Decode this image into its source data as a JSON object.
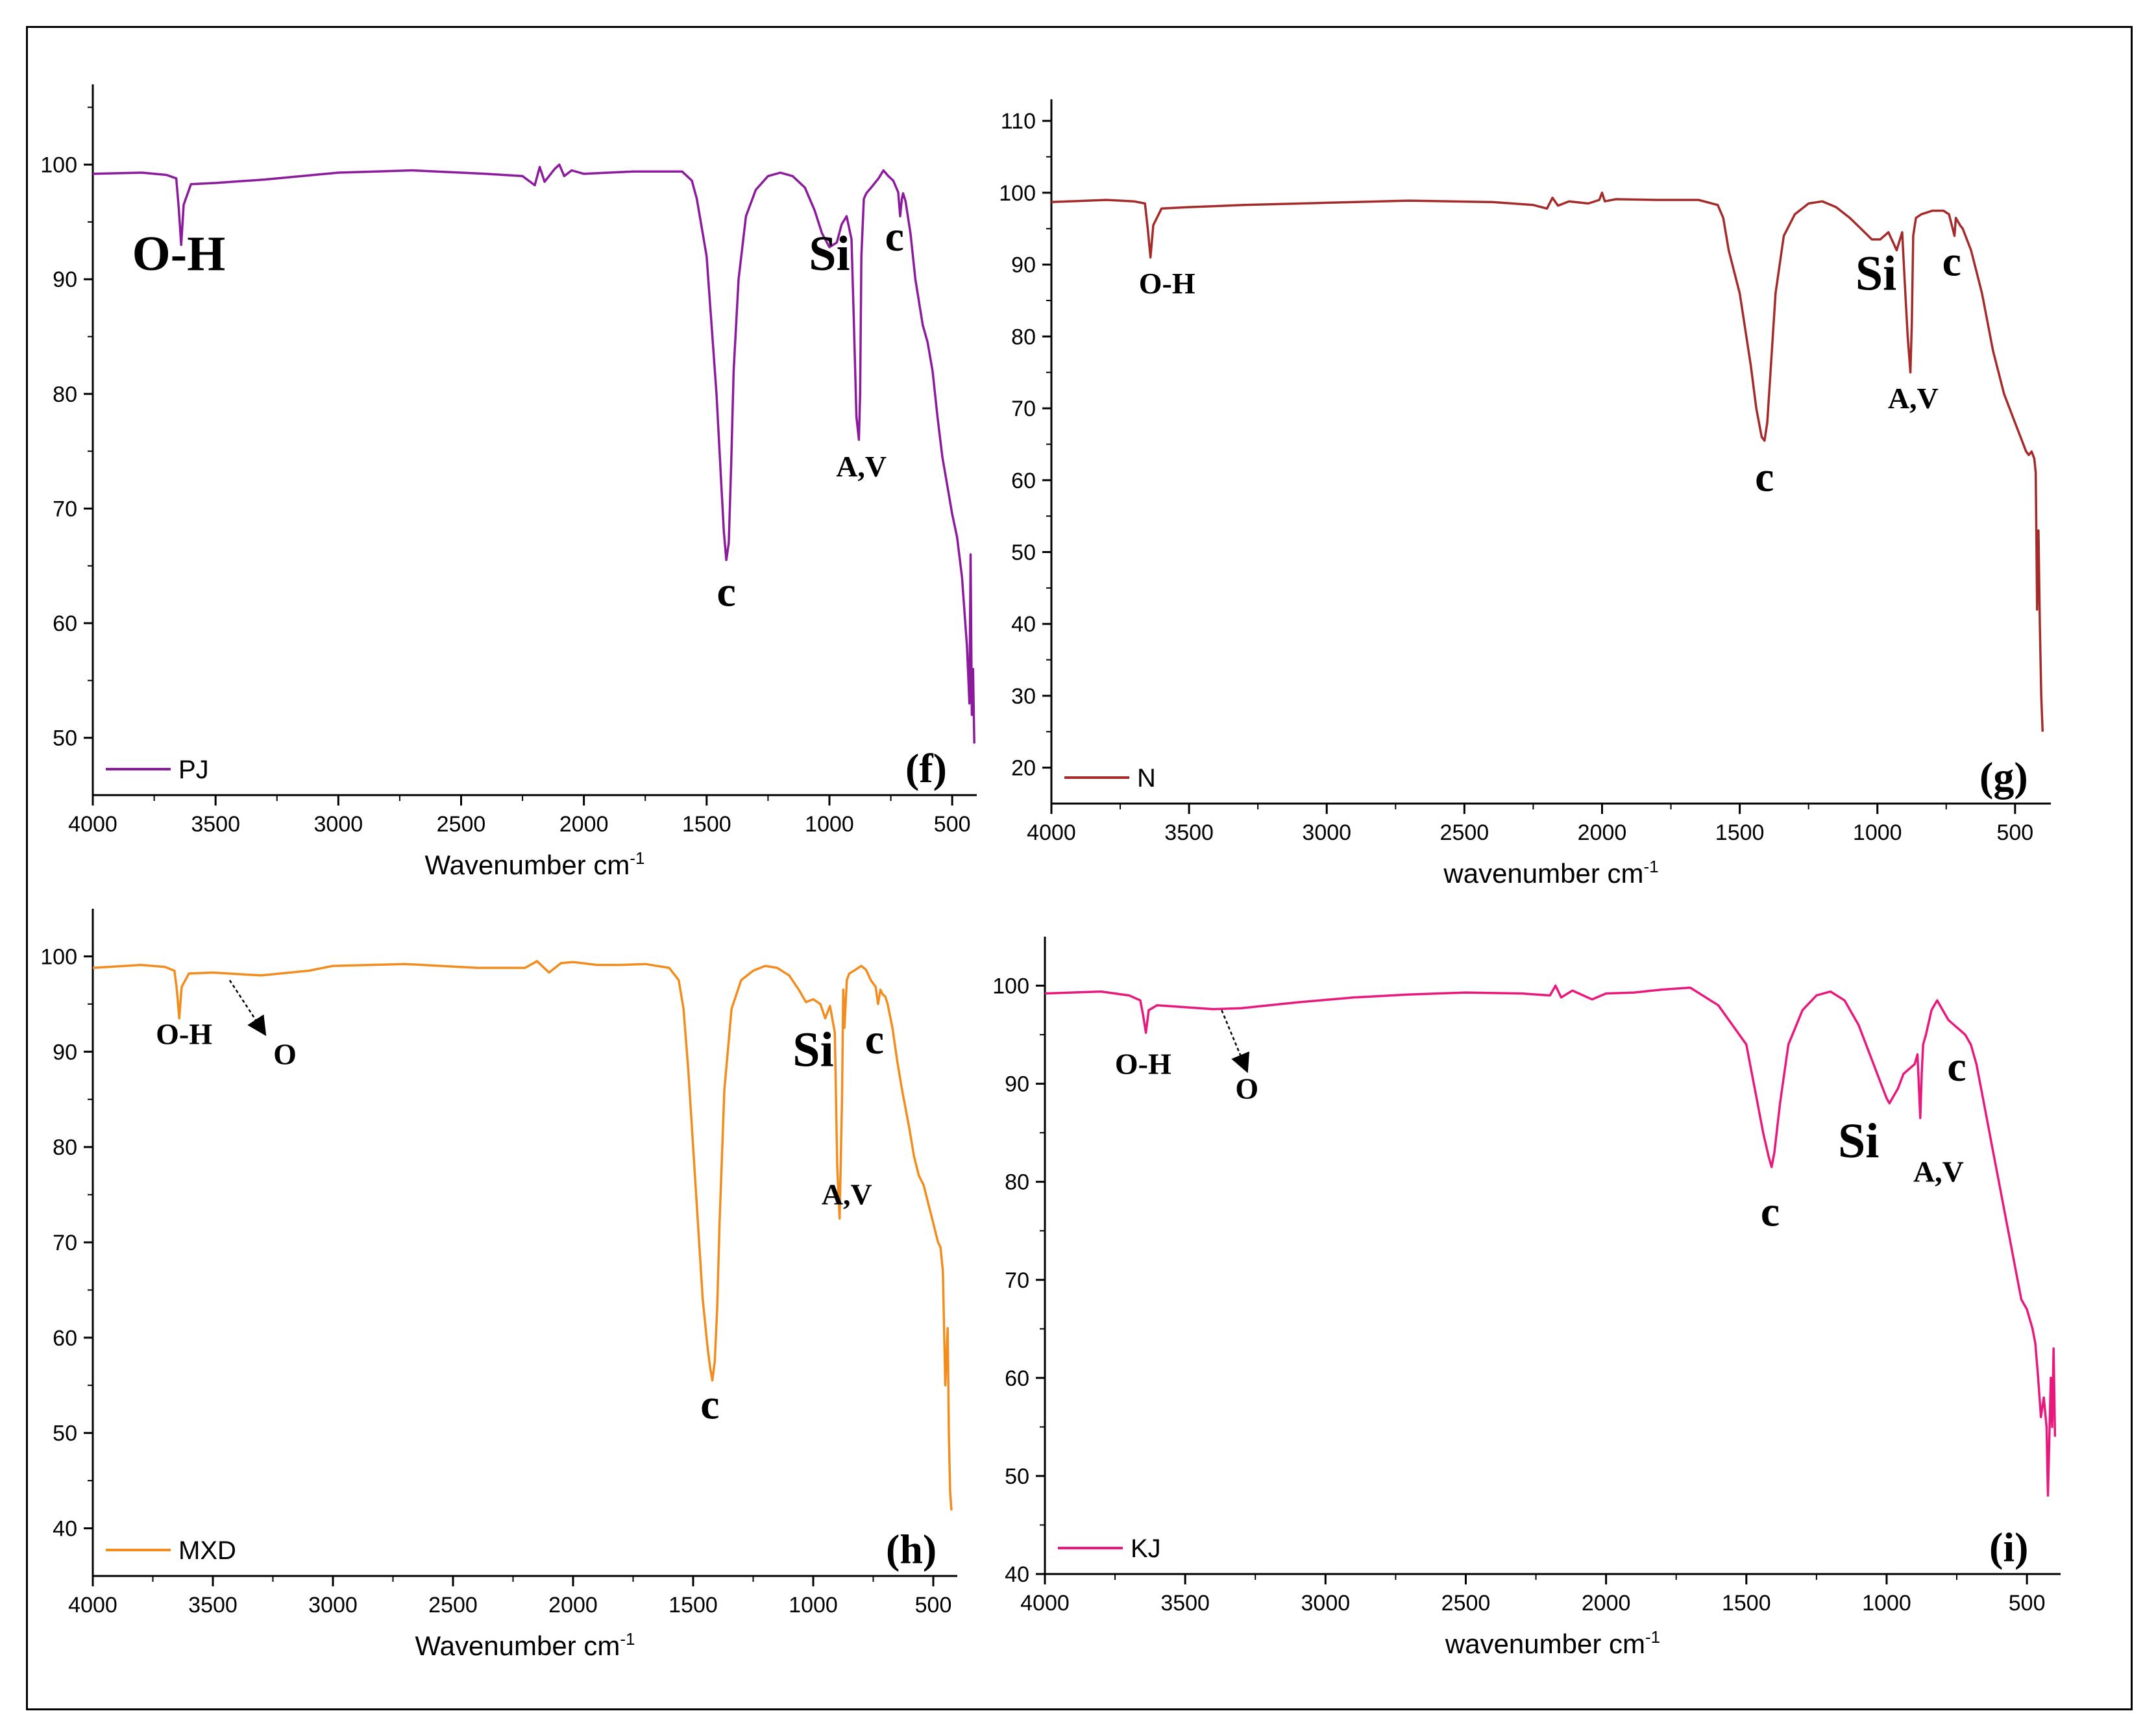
{
  "figure": {
    "background": "#ffffff",
    "frame_color": "#000000"
  },
  "chart_data": [
    {
      "id": "f",
      "type": "line",
      "panel_label": "(f)",
      "xlabel": "Wavenumber cm",
      "xlabel_sup": "-1",
      "ylabel": "",
      "xlim": [
        4000,
        400
      ],
      "ylim": [
        45,
        107
      ],
      "xticks": [
        4000,
        3500,
        3000,
        2500,
        2000,
        1500,
        1000,
        500
      ],
      "yticks": [
        50,
        60,
        70,
        80,
        90,
        100
      ],
      "legend": {
        "label": "PJ",
        "position": "bottom-left"
      },
      "series": [
        {
          "name": "PJ",
          "color": "#8b1a9c",
          "x": [
            4000,
            3800,
            3700,
            3660,
            3650,
            3640,
            3630,
            3600,
            3500,
            3300,
            3000,
            2700,
            2400,
            2250,
            2200,
            2180,
            2160,
            2120,
            2100,
            2080,
            2050,
            2000,
            1800,
            1600,
            1560,
            1540,
            1500,
            1460,
            1440,
            1430,
            1420,
            1410,
            1400,
            1390,
            1370,
            1340,
            1300,
            1250,
            1200,
            1150,
            1100,
            1060,
            1030,
            1000,
            970,
            950,
            930,
            910,
            900,
            890,
            880,
            875,
            870,
            860,
            850,
            830,
            800,
            780,
            760,
            740,
            720,
            712,
            705,
            700,
            690,
            670,
            650,
            620,
            600,
            580,
            560,
            540,
            520,
            500,
            480,
            460,
            450,
            440,
            430,
            425,
            420,
            415,
            410
          ],
          "y": [
            99.2,
            99.3,
            99.1,
            98.8,
            96.2,
            93.0,
            96.5,
            98.3,
            98.4,
            98.7,
            99.3,
            99.5,
            99.2,
            99.0,
            98.2,
            99.8,
            98.5,
            99.6,
            100.0,
            99.0,
            99.5,
            99.2,
            99.4,
            99.4,
            98.6,
            97.0,
            92.0,
            80.0,
            72.0,
            68.0,
            65.5,
            67.0,
            74.0,
            82.0,
            90.0,
            95.5,
            97.8,
            99.0,
            99.3,
            99.0,
            98.0,
            96.0,
            94.0,
            92.8,
            93.2,
            94.8,
            95.5,
            93.5,
            86.0,
            78.0,
            76.0,
            80.0,
            92.0,
            97.0,
            97.5,
            98.0,
            98.8,
            99.5,
            99.0,
            98.6,
            97.6,
            95.5,
            97.0,
            97.5,
            96.8,
            94.0,
            90.0,
            86.0,
            84.5,
            82.0,
            78.0,
            74.5,
            72.0,
            69.5,
            67.5,
            64.0,
            61.0,
            58.0,
            53.0,
            66.0,
            52.0,
            56.0,
            49.5
          ]
        }
      ],
      "annotations": [
        {
          "text": "O-H",
          "x": 3650,
          "y": 90.8,
          "size": "large"
        },
        {
          "text": "Si",
          "x": 1000,
          "y": 90.8,
          "size": "large"
        },
        {
          "text": "c",
          "x": 735,
          "y": 92.5,
          "size": "medium"
        },
        {
          "text": "A,V",
          "x": 870,
          "y": 72.8,
          "size": "small"
        },
        {
          "text": "c",
          "x": 1420,
          "y": 61.5,
          "size": "medium"
        }
      ]
    },
    {
      "id": "g",
      "type": "line",
      "panel_label": "(g)",
      "xlabel": "wavenumber cm",
      "xlabel_sup": "-1",
      "ylabel": "",
      "xlim": [
        4000,
        370
      ],
      "ylim": [
        15,
        113
      ],
      "xticks": [
        4000,
        3500,
        3000,
        2500,
        2000,
        1500,
        1000,
        500
      ],
      "yticks": [
        20,
        30,
        40,
        50,
        60,
        70,
        80,
        90,
        100,
        110
      ],
      "legend": {
        "label": "N",
        "position": "bottom-left"
      },
      "series": [
        {
          "name": "N",
          "color": "#a52a2a",
          "x": [
            4000,
            3800,
            3700,
            3660,
            3650,
            3640,
            3630,
            3600,
            3500,
            3300,
            3000,
            2700,
            2400,
            2250,
            2200,
            2180,
            2160,
            2120,
            2050,
            2010,
            2000,
            1990,
            1950,
            1800,
            1650,
            1580,
            1560,
            1540,
            1500,
            1460,
            1440,
            1420,
            1410,
            1400,
            1390,
            1370,
            1340,
            1300,
            1250,
            1200,
            1150,
            1100,
            1060,
            1020,
            990,
            960,
            930,
            910,
            900,
            890,
            880,
            875,
            870,
            860,
            840,
            800,
            760,
            740,
            730,
            720,
            715,
            700,
            690,
            660,
            620,
            600,
            580,
            560,
            540,
            500,
            470,
            460,
            450,
            440,
            430,
            425,
            420,
            415,
            410,
            405,
            400
          ],
          "y": [
            98.7,
            99.0,
            98.8,
            98.5,
            95.0,
            91.0,
            95.5,
            97.8,
            98.0,
            98.3,
            98.6,
            98.9,
            98.7,
            98.3,
            97.8,
            99.3,
            98.2,
            98.8,
            98.5,
            99.0,
            100.0,
            98.8,
            99.1,
            99.0,
            99.0,
            98.3,
            96.5,
            92.0,
            86.0,
            76.0,
            70.0,
            66.0,
            65.5,
            68.0,
            74.0,
            86.0,
            94.0,
            97.0,
            98.5,
            98.8,
            98.0,
            96.5,
            95.0,
            93.5,
            93.5,
            94.5,
            92.0,
            94.5,
            87.0,
            80.0,
            75.0,
            82.0,
            94.0,
            96.5,
            97.0,
            97.5,
            97.5,
            97.0,
            95.5,
            94.0,
            96.5,
            95.5,
            95.0,
            92.0,
            86.0,
            82.0,
            78.0,
            75.0,
            72.0,
            68.0,
            65.0,
            64.0,
            63.5,
            64.0,
            63.0,
            61.0,
            42.0,
            53.0,
            40.0,
            30.0,
            25.0
          ]
        }
      ],
      "annotations": [
        {
          "text": "O-H",
          "x": 3580,
          "y": 86.0,
          "size": "small"
        },
        {
          "text": "Si",
          "x": 1005,
          "y": 86.5,
          "size": "large"
        },
        {
          "text": "c",
          "x": 730,
          "y": 88.5,
          "size": "medium"
        },
        {
          "text": "A,V",
          "x": 870,
          "y": 70.0,
          "size": "small"
        },
        {
          "text": "c",
          "x": 1410,
          "y": 58.5,
          "size": "medium"
        }
      ]
    },
    {
      "id": "h",
      "type": "line",
      "panel_label": "(h)",
      "xlabel": "Wavenumber cm",
      "xlabel_sup": "-1",
      "ylabel": "",
      "xlim": [
        4000,
        400
      ],
      "ylim": [
        35,
        105
      ],
      "xticks": [
        4000,
        3500,
        3000,
        2500,
        2000,
        1500,
        1000,
        500
      ],
      "yticks": [
        40,
        50,
        60,
        70,
        80,
        90,
        100
      ],
      "legend": {
        "label": "MXD",
        "position": "bottom-left"
      },
      "series": [
        {
          "name": "MXD",
          "color": "#f28c1c",
          "x": [
            4000,
            3800,
            3700,
            3660,
            3650,
            3640,
            3630,
            3600,
            3500,
            3300,
            3100,
            3000,
            2700,
            2400,
            2200,
            2150,
            2100,
            2050,
            2000,
            1900,
            1800,
            1700,
            1600,
            1560,
            1540,
            1520,
            1500,
            1480,
            1460,
            1440,
            1430,
            1420,
            1410,
            1400,
            1390,
            1370,
            1340,
            1300,
            1250,
            1200,
            1150,
            1100,
            1060,
            1030,
            1000,
            970,
            950,
            930,
            910,
            900,
            890,
            880,
            875,
            870,
            860,
            850,
            830,
            800,
            780,
            760,
            740,
            730,
            720,
            710,
            700,
            690,
            670,
            650,
            630,
            600,
            580,
            560,
            540,
            520,
            500,
            480,
            470,
            460,
            450,
            440,
            435,
            430,
            425,
            420
          ],
          "y": [
            98.8,
            99.1,
            98.9,
            98.5,
            96.5,
            93.5,
            96.8,
            98.2,
            98.3,
            98.0,
            98.5,
            99.0,
            99.2,
            98.8,
            98.8,
            99.5,
            98.3,
            99.3,
            99.4,
            99.1,
            99.1,
            99.2,
            98.8,
            97.5,
            94.5,
            88.0,
            80.0,
            72.0,
            64.0,
            59.0,
            57.0,
            55.5,
            57.5,
            63.0,
            72.0,
            86.0,
            94.5,
            97.5,
            98.5,
            99.0,
            98.8,
            98.0,
            96.5,
            95.2,
            95.5,
            95.0,
            93.5,
            94.8,
            92.0,
            78.0,
            72.5,
            85.0,
            96.5,
            92.5,
            97.5,
            98.2,
            98.5,
            99.0,
            98.6,
            97.5,
            96.8,
            95.0,
            96.5,
            96.0,
            95.8,
            95.0,
            92.5,
            89.0,
            86.0,
            82.0,
            79.0,
            77.0,
            76.0,
            74.0,
            72.0,
            70.0,
            69.5,
            67.0,
            55.0,
            61.0,
            50.0,
            44.0,
            42.0,
            42.0
          ]
        }
      ],
      "annotations": [
        {
          "text": "O-H",
          "x": 3620,
          "y": 90.8,
          "size": "small"
        },
        {
          "text": "O",
          "x": 3200,
          "y": 88.7,
          "size": "small"
        },
        {
          "text": "Si",
          "x": 1000,
          "y": 88.5,
          "size": "large"
        },
        {
          "text": "c",
          "x": 745,
          "y": 89.8,
          "size": "medium"
        },
        {
          "text": "A,V",
          "x": 860,
          "y": 74.0,
          "size": "small"
        },
        {
          "text": "c",
          "x": 1430,
          "y": 51.5,
          "size": "medium"
        }
      ],
      "arrows": [
        {
          "from": [
            3430,
            97.5
          ],
          "to": [
            3300,
            92.5
          ]
        }
      ]
    },
    {
      "id": "i",
      "type": "line",
      "panel_label": "(i)",
      "xlabel": "wavenumber cm",
      "xlabel_sup": "-1",
      "ylabel": "",
      "xlim": [
        4000,
        380
      ],
      "ylim": [
        40,
        105
      ],
      "xticks": [
        4000,
        3500,
        3000,
        2500,
        2000,
        1500,
        1000,
        500
      ],
      "yticks": [
        40,
        50,
        60,
        70,
        80,
        90,
        100
      ],
      "legend": {
        "label": "KJ",
        "position": "bottom-left"
      },
      "series": [
        {
          "name": "KJ",
          "color": "#e8187c",
          "x": [
            4000,
            3800,
            3700,
            3660,
            3650,
            3640,
            3630,
            3600,
            3500,
            3400,
            3300,
            3100,
            2900,
            2700,
            2500,
            2300,
            2200,
            2180,
            2160,
            2120,
            2050,
            2000,
            1900,
            1800,
            1700,
            1600,
            1550,
            1500,
            1480,
            1460,
            1440,
            1420,
            1410,
            1400,
            1380,
            1350,
            1300,
            1250,
            1200,
            1150,
            1100,
            1060,
            1020,
            1000,
            990,
            980,
            960,
            940,
            920,
            900,
            890,
            880,
            875,
            870,
            860,
            840,
            820,
            800,
            780,
            760,
            740,
            720,
            700,
            680,
            660,
            640,
            620,
            600,
            580,
            560,
            540,
            520,
            500,
            480,
            470,
            460,
            450,
            440,
            430,
            425,
            420,
            415,
            410,
            405,
            400
          ],
          "y": [
            99.2,
            99.4,
            99.0,
            98.5,
            97.0,
            95.2,
            97.5,
            98.0,
            97.8,
            97.6,
            97.7,
            98.3,
            98.8,
            99.1,
            99.3,
            99.2,
            99.0,
            100.0,
            98.8,
            99.5,
            98.6,
            99.2,
            99.3,
            99.6,
            99.8,
            98.0,
            96.0,
            94.0,
            91.0,
            88.0,
            85.0,
            82.5,
            81.5,
            83.0,
            88.0,
            94.0,
            97.5,
            99.0,
            99.4,
            98.5,
            96.0,
            93.0,
            90.0,
            88.5,
            88.0,
            88.5,
            89.5,
            91.0,
            91.5,
            92.0,
            93.0,
            86.5,
            91.0,
            94.0,
            95.0,
            97.5,
            98.5,
            97.5,
            96.5,
            96.0,
            95.5,
            95.0,
            94.0,
            92.0,
            89.0,
            86.0,
            83.0,
            80.0,
            77.0,
            74.0,
            71.0,
            68.0,
            67.0,
            65.0,
            63.5,
            60.0,
            56.0,
            58.0,
            55.0,
            48.0,
            54.0,
            60.0,
            55.0,
            63.0,
            54.0
          ]
        }
      ],
      "annotations": [
        {
          "text": "O-H",
          "x": 3650,
          "y": 91.0,
          "size": "small"
        },
        {
          "text": "O",
          "x": 3280,
          "y": 88.5,
          "size": "small"
        },
        {
          "text": "Si",
          "x": 1100,
          "y": 82.5,
          "size": "large"
        },
        {
          "text": "c",
          "x": 750,
          "y": 90.3,
          "size": "medium"
        },
        {
          "text": "A,V",
          "x": 815,
          "y": 80.0,
          "size": "small"
        },
        {
          "text": "c",
          "x": 1415,
          "y": 75.5,
          "size": "medium"
        }
      ],
      "arrows": [
        {
          "from": [
            3370,
            97.5
          ],
          "to": [
            3290,
            92.0
          ]
        }
      ]
    }
  ]
}
